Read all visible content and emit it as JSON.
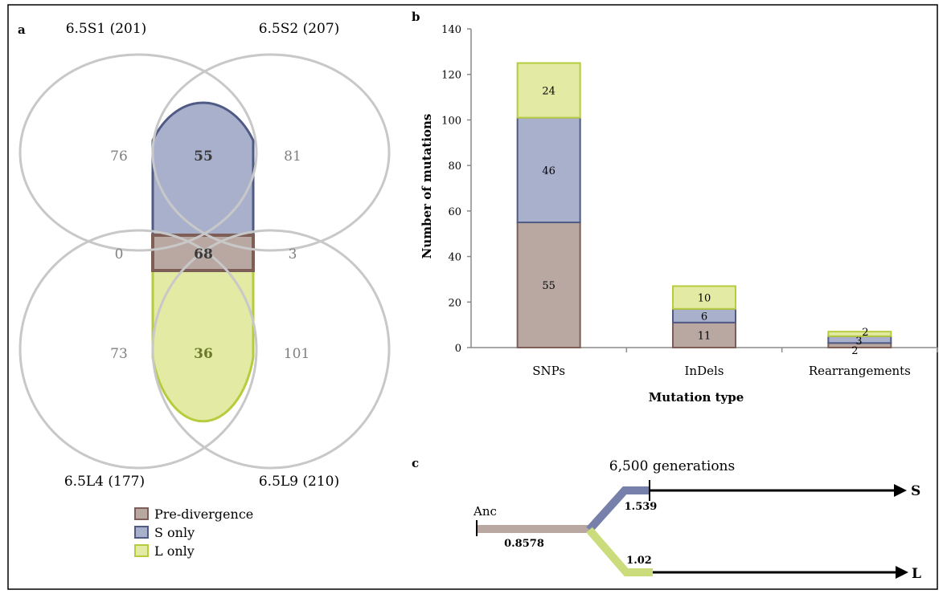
{
  "panels": {
    "a": "a",
    "b": "b",
    "c": "c"
  },
  "venn": {
    "sets": {
      "s1": "6.5S1 (201)",
      "s2": "6.5S2 (207)",
      "l4": "6.5L4 (177)",
      "l9": "6.5L9 (210)"
    },
    "regions": {
      "s1_only": "76",
      "s2_only": "81",
      "l4_only": "73",
      "l9_only": "101",
      "s_shared": "55",
      "pre_divergence": "68",
      "l_shared": "36",
      "s1_l4": "0",
      "s2_l9": "3"
    },
    "legend": [
      {
        "label": "Pre-divergence",
        "color": "#b9a8a2",
        "stroke": "#7d5f58"
      },
      {
        "label": "S only",
        "color": "#a9b0cc",
        "stroke": "#4f5a85"
      },
      {
        "label": "L only",
        "color": "#e3eaa4",
        "stroke": "#b6cc3e"
      }
    ]
  },
  "chart_data": {
    "type": "bar",
    "stacked": true,
    "categories": [
      "SNPs",
      "InDels",
      "Rearrangements"
    ],
    "series": [
      {
        "name": "Pre-divergence",
        "values": [
          55,
          11,
          2
        ],
        "color": "#b9a8a2",
        "stroke": "#7d5f58"
      },
      {
        "name": "S only",
        "values": [
          46,
          6,
          3
        ],
        "color": "#a9b0cc",
        "stroke": "#4f5a85"
      },
      {
        "name": "L only",
        "values": [
          24,
          10,
          2
        ],
        "color": "#e3eaa4",
        "stroke": "#b6cc3e"
      }
    ],
    "xlabel": "Mutation type",
    "ylabel": "Number of mutations",
    "ylim": [
      0,
      140
    ],
    "yticks": [
      0,
      20,
      40,
      60,
      80,
      100,
      120,
      140
    ]
  },
  "tree": {
    "generations": "6,500 generations",
    "ancestor": "Anc",
    "trunk_rate": "0.8578",
    "s_rate": "1.539",
    "l_rate": "1.02",
    "s_leaf": "S",
    "l_leaf": "L",
    "colors": {
      "trunk": "#b9a8a2",
      "s": "#7780aa",
      "l": "#cbdc7c"
    }
  }
}
